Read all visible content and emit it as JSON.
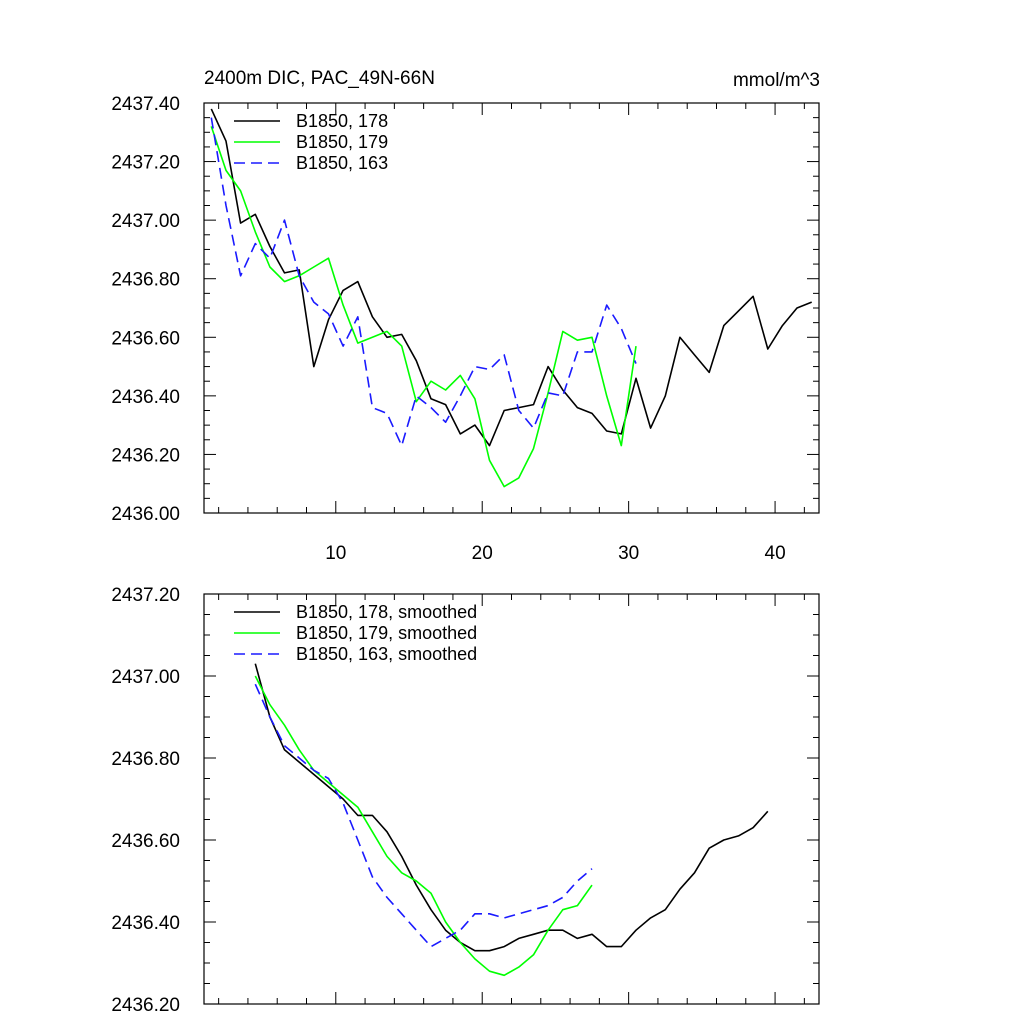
{
  "chart_data": [
    {
      "type": "line",
      "title": "2400m DIC, PAC_49N-66N",
      "units": "mmol/m^3",
      "xlabel": "",
      "ylabel": "",
      "xlim": [
        1,
        43
      ],
      "ylim": [
        2436.0,
        2437.4
      ],
      "xticks": [
        10,
        20,
        30,
        40
      ],
      "xtick_labels": [
        "10",
        "20",
        "30",
        "40"
      ],
      "yticks": [
        2436.0,
        2436.2,
        2436.4,
        2436.6,
        2436.8,
        2437.0,
        2437.2,
        2437.4
      ],
      "ytick_labels": [
        "2436.00",
        "2436.20",
        "2436.40",
        "2436.60",
        "2436.80",
        "2437.00",
        "2437.20",
        "2437.40"
      ],
      "legend": "top-left",
      "series": [
        {
          "name": "B1850, 178",
          "color": "#000000",
          "dash": "solid",
          "x": [
            1.5,
            2.5,
            3.5,
            4.5,
            5.5,
            6.5,
            7.5,
            8.5,
            9.5,
            10.5,
            11.5,
            12.5,
            13.5,
            14.5,
            15.5,
            16.5,
            17.5,
            18.5,
            19.5,
            20.5,
            21.5,
            22.5,
            23.5,
            24.5,
            25.5,
            26.5,
            27.5,
            28.5,
            29.5,
            30.5,
            31.5,
            32.5,
            33.5,
            34.5,
            35.5,
            36.5,
            37.5,
            38.5,
            39.5,
            40.5,
            41.5,
            42.5
          ],
          "values": [
            2437.38,
            2437.27,
            2436.99,
            2437.02,
            2436.91,
            2436.82,
            2436.83,
            2436.5,
            2436.66,
            2436.76,
            2436.79,
            2436.67,
            2436.6,
            2436.61,
            2436.52,
            2436.39,
            2436.37,
            2436.27,
            2436.3,
            2436.23,
            2436.35,
            2436.36,
            2436.37,
            2436.5,
            2436.42,
            2436.36,
            2436.34,
            2436.28,
            2436.27,
            2436.46,
            2436.29,
            2436.4,
            2436.6,
            2436.54,
            2436.48,
            2436.64,
            2436.69,
            2436.74,
            2436.56,
            2436.64,
            2436.7,
            2436.72
          ]
        },
        {
          "name": "B1850, 179",
          "color": "#00ff00",
          "dash": "solid",
          "x": [
            1.5,
            2.5,
            3.5,
            4.5,
            5.5,
            6.5,
            7.5,
            8.5,
            9.5,
            10.5,
            11.5,
            12.5,
            13.5,
            14.5,
            15.5,
            16.5,
            17.5,
            18.5,
            19.5,
            20.5,
            21.5,
            22.5,
            23.5,
            24.5,
            25.5,
            26.5,
            27.5,
            28.5,
            29.5,
            30.5
          ],
          "values": [
            2437.32,
            2437.17,
            2437.1,
            2436.96,
            2436.84,
            2436.79,
            2436.81,
            2436.84,
            2436.87,
            2436.71,
            2436.58,
            2436.6,
            2436.62,
            2436.57,
            2436.38,
            2436.45,
            2436.42,
            2436.47,
            2436.39,
            2436.18,
            2436.09,
            2436.12,
            2436.22,
            2436.41,
            2436.62,
            2436.59,
            2436.6,
            2436.4,
            2436.23,
            2436.57
          ]
        },
        {
          "name": "B1850, 163",
          "color": "#1a1aff",
          "dash": "dashed",
          "x": [
            1.5,
            2.5,
            3.5,
            4.5,
            5.5,
            6.5,
            7.5,
            8.5,
            9.5,
            10.5,
            11.5,
            12.5,
            13.5,
            14.5,
            15.5,
            16.5,
            17.5,
            18.5,
            19.5,
            20.5,
            21.5,
            22.5,
            23.5,
            24.5,
            25.5,
            26.5,
            27.5,
            28.5,
            29.5,
            30.5
          ],
          "values": [
            2437.35,
            2437.05,
            2436.81,
            2436.92,
            2436.87,
            2437.0,
            2436.81,
            2436.72,
            2436.68,
            2436.57,
            2436.67,
            2436.36,
            2436.34,
            2436.23,
            2436.4,
            2436.36,
            2436.31,
            2436.4,
            2436.5,
            2436.49,
            2436.54,
            2436.35,
            2436.29,
            2436.41,
            2436.4,
            2436.55,
            2436.55,
            2436.71,
            2436.63,
            2436.51
          ]
        }
      ]
    },
    {
      "type": "line",
      "title": "",
      "xlabel": "",
      "ylabel": "",
      "xlim": [
        1,
        43
      ],
      "ylim": [
        2436.2,
        2437.2
      ],
      "xticks": [
        10,
        20,
        30,
        40
      ],
      "yticks": [
        2436.2,
        2436.4,
        2436.6,
        2436.8,
        2437.0,
        2437.2
      ],
      "ytick_labels": [
        "2436.20",
        "2436.40",
        "2436.60",
        "2436.80",
        "2437.00",
        "2437.20"
      ],
      "legend": "top-left",
      "series": [
        {
          "name": "B1850, 178, smoothed",
          "color": "#000000",
          "dash": "solid",
          "x": [
            4.5,
            5.5,
            6.5,
            7.5,
            8.5,
            9.5,
            10.5,
            11.5,
            12.5,
            13.5,
            14.5,
            15.5,
            16.5,
            17.5,
            18.5,
            19.5,
            20.5,
            21.5,
            22.5,
            23.5,
            24.5,
            25.5,
            26.5,
            27.5,
            28.5,
            29.5,
            30.5,
            31.5,
            32.5,
            33.5,
            34.5,
            35.5,
            36.5,
            37.5,
            38.5,
            39.5
          ],
          "values": [
            2437.03,
            2436.9,
            2436.82,
            2436.79,
            2436.76,
            2436.73,
            2436.7,
            2436.66,
            2436.66,
            2436.62,
            2436.56,
            2436.49,
            2436.43,
            2436.38,
            2436.35,
            2436.33,
            2436.33,
            2436.34,
            2436.36,
            2436.37,
            2436.38,
            2436.38,
            2436.36,
            2436.37,
            2436.34,
            2436.34,
            2436.38,
            2436.41,
            2436.43,
            2436.48,
            2436.52,
            2436.58,
            2436.6,
            2436.61,
            2436.63,
            2436.67
          ]
        },
        {
          "name": "B1850, 179, smoothed",
          "color": "#00ff00",
          "dash": "solid",
          "x": [
            4.5,
            5.5,
            6.5,
            7.5,
            8.5,
            9.5,
            10.5,
            11.5,
            12.5,
            13.5,
            14.5,
            15.5,
            16.5,
            17.5,
            18.5,
            19.5,
            20.5,
            21.5,
            22.5,
            23.5,
            24.5,
            25.5,
            26.5,
            27.5
          ],
          "values": [
            2437.0,
            2436.93,
            2436.88,
            2436.82,
            2436.77,
            2436.74,
            2436.71,
            2436.68,
            2436.62,
            2436.56,
            2436.52,
            2436.5,
            2436.47,
            2436.4,
            2436.35,
            2436.31,
            2436.28,
            2436.27,
            2436.29,
            2436.32,
            2436.38,
            2436.43,
            2436.44,
            2436.49
          ]
        },
        {
          "name": "B1850, 163, smoothed",
          "color": "#1a1aff",
          "dash": "dashed",
          "x": [
            4.5,
            5.5,
            6.5,
            7.5,
            8.5,
            9.5,
            10.5,
            11.5,
            12.5,
            13.5,
            14.5,
            15.5,
            16.5,
            17.5,
            18.5,
            19.5,
            20.5,
            21.5,
            22.5,
            23.5,
            24.5,
            25.5,
            26.5,
            27.5
          ],
          "values": [
            2436.98,
            2436.9,
            2436.83,
            2436.8,
            2436.77,
            2436.75,
            2436.69,
            2436.6,
            2436.51,
            2436.46,
            2436.42,
            2436.38,
            2436.34,
            2436.36,
            2436.38,
            2436.42,
            2436.42,
            2436.41,
            2436.42,
            2436.43,
            2436.44,
            2436.46,
            2436.5,
            2436.53
          ]
        }
      ]
    }
  ]
}
